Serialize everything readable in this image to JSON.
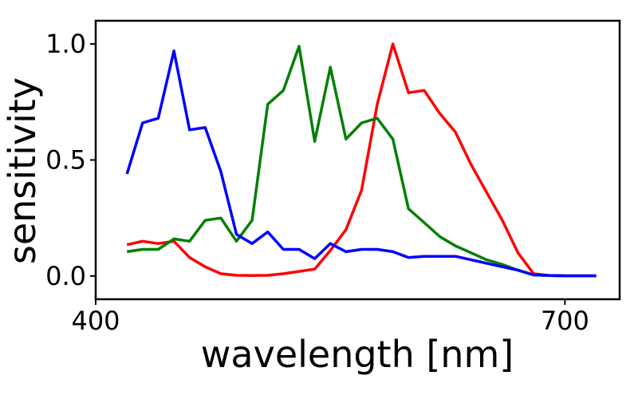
{
  "chart_data": {
    "type": "line",
    "title": "",
    "xlabel": "wavelength [nm]",
    "ylabel": "sensitivity",
    "xlim": [
      400,
      735
    ],
    "ylim": [
      -0.1,
      1.1
    ],
    "x_ticks": [
      400,
      700
    ],
    "x_tick_labels": [
      "400",
      "700"
    ],
    "y_ticks": [
      0.0,
      0.5,
      1.0
    ],
    "y_tick_labels": [
      "0.0",
      "0.5",
      "1.0"
    ],
    "grid": false,
    "x": [
      420,
      430,
      440,
      450,
      460,
      470,
      480,
      490,
      500,
      510,
      520,
      530,
      540,
      550,
      560,
      570,
      580,
      590,
      600,
      610,
      620,
      630,
      640,
      650,
      660,
      670,
      680,
      690,
      700,
      710,
      720
    ],
    "series": [
      {
        "color": "#ff0000",
        "values": [
          0.135,
          0.15,
          0.14,
          0.15,
          0.08,
          0.04,
          0.01,
          0.003,
          0.002,
          0.003,
          0.01,
          0.02,
          0.03,
          0.11,
          0.2,
          0.37,
          0.74,
          1.0,
          0.79,
          0.8,
          0.7,
          0.62,
          0.48,
          0.36,
          0.24,
          0.1,
          0.01,
          0.002,
          0.001,
          0.001,
          0.001
        ]
      },
      {
        "color": "#008000",
        "values": [
          0.105,
          0.115,
          0.115,
          0.16,
          0.15,
          0.24,
          0.25,
          0.15,
          0.24,
          0.74,
          0.8,
          0.99,
          0.58,
          0.9,
          0.59,
          0.66,
          0.68,
          0.59,
          0.29,
          0.23,
          0.17,
          0.13,
          0.1,
          0.07,
          0.05,
          0.025,
          0.005,
          0.002,
          0.001,
          0.001,
          0.001
        ]
      },
      {
        "color": "#0000ff",
        "values": [
          0.44,
          0.66,
          0.68,
          0.97,
          0.63,
          0.64,
          0.45,
          0.18,
          0.14,
          0.19,
          0.115,
          0.115,
          0.075,
          0.14,
          0.105,
          0.115,
          0.115,
          0.105,
          0.08,
          0.085,
          0.085,
          0.085,
          0.07,
          0.055,
          0.04,
          0.025,
          0.005,
          0.002,
          0.001,
          0.001,
          0.001
        ]
      }
    ]
  }
}
